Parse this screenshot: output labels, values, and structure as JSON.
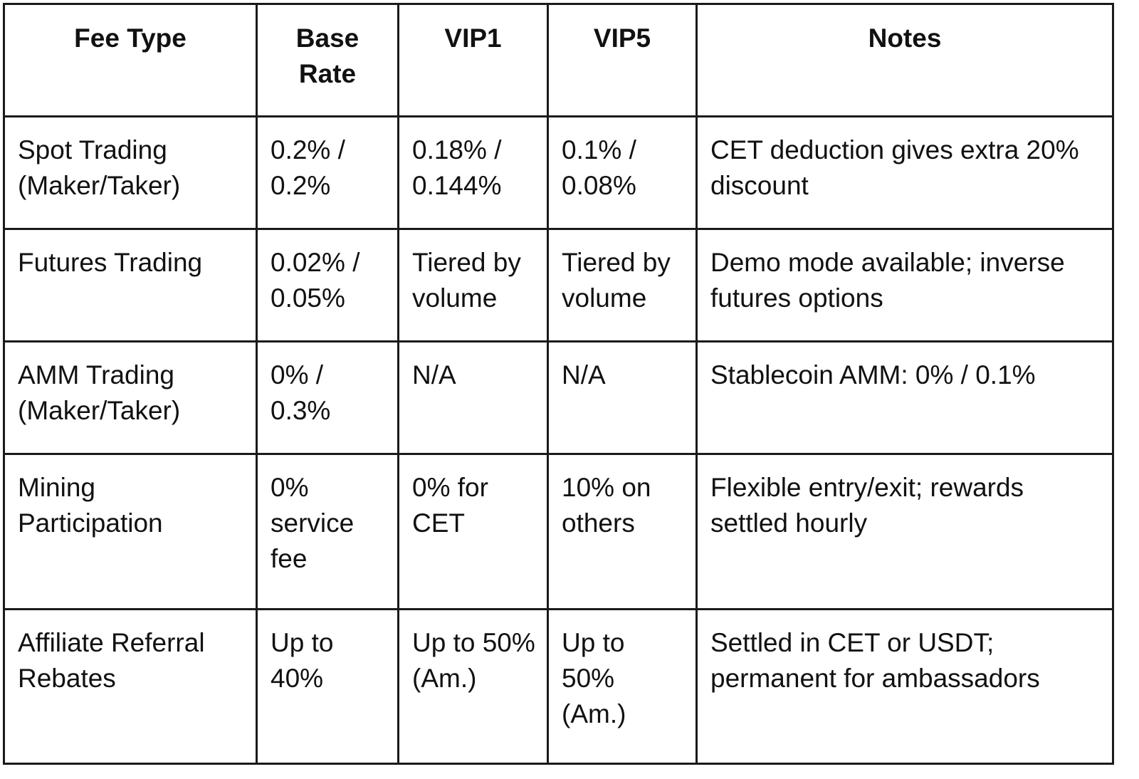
{
  "table": {
    "headers": [
      "Fee Type",
      "Base Rate",
      "VIP1",
      "VIP5",
      "Notes"
    ],
    "rows": [
      [
        "Spot Trading (Maker/Taker)",
        "0.2% / 0.2%",
        "0.18% / 0.144%",
        "0.1% / 0.08%",
        "CET deduction gives extra 20% discount"
      ],
      [
        "Futures Trading",
        "0.02% / 0.05%",
        "Tiered by volume",
        "Tiered by volume",
        "Demo mode available; inverse futures options"
      ],
      [
        "AMM Trading (Maker/Taker)",
        "0% / 0.3%",
        "N/A",
        "N/A",
        "Stablecoin AMM: 0% / 0.1%"
      ],
      [
        "Mining Participation",
        "0% service fee",
        "0% for CET",
        "10% on others",
        "Flexible entry/exit; rewards settled hourly"
      ],
      [
        "Affiliate Referral Rebates",
        "Up to 40%",
        "Up to 50% (Am.)",
        "Up to 50% (Am.)",
        "Settled in CET or USDT; permanent for ambassadors"
      ]
    ]
  }
}
